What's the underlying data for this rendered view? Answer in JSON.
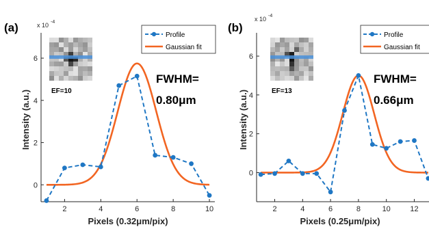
{
  "colors": {
    "profile": "#1f77c4",
    "fit": "#f26522",
    "inset_line": "#4a90d9",
    "axis": "#262626"
  },
  "chart_data": [
    {
      "type": "line",
      "panel_label": "(a)",
      "exponent_label": "x 10",
      "exponent_power": "-4",
      "xlabel": "Pixels (0.32μm/pix)",
      "ylabel": "Intensity (a.u.)",
      "xlim": [
        0.7,
        10.3
      ],
      "ylim": [
        -0.8,
        7.2
      ],
      "xticks": [
        2,
        4,
        6,
        8,
        10
      ],
      "yticks": [
        0,
        2,
        4,
        6
      ],
      "annotation_line1": "FWHM=",
      "annotation_line2": "0.80μm",
      "inset_label": "EF=10",
      "legend_position": "top-right",
      "series": [
        {
          "name": "Profile",
          "style": "dashed-markers",
          "x": [
            1,
            2,
            3,
            4,
            5,
            6,
            7,
            8,
            9,
            10
          ],
          "y": [
            -0.75,
            0.8,
            0.95,
            0.85,
            4.7,
            5.15,
            1.4,
            1.3,
            1.0,
            -0.5
          ]
        },
        {
          "name": "Gaussian fit",
          "style": "solid",
          "gaussian": {
            "amplitude": 5.75,
            "center": 6.0,
            "fwhm": 2.5,
            "offset": 0.0,
            "xrange": [
              1,
              10
            ]
          }
        }
      ]
    },
    {
      "type": "line",
      "panel_label": "(b)",
      "exponent_label": "x 10",
      "exponent_power": "-4",
      "xlabel": "Pixels (0.25μm/pix)",
      "ylabel": "Intensity (a.u.)",
      "xlim": [
        0.7,
        13.3
      ],
      "ylim": [
        -1.5,
        7.2
      ],
      "xticks": [
        2,
        4,
        6,
        8,
        10,
        12
      ],
      "yticks": [
        0,
        2,
        4,
        6
      ],
      "annotation_line1": "FWHM=",
      "annotation_line2": "0.66μm",
      "inset_label": "EF=13",
      "legend_position": "top-right",
      "series": [
        {
          "name": "Profile",
          "style": "dashed-markers",
          "x": [
            1,
            2,
            3,
            4,
            5,
            6,
            7,
            8,
            9,
            10,
            11,
            12,
            13
          ],
          "y": [
            -0.1,
            -0.05,
            0.6,
            -0.05,
            -0.05,
            -1.0,
            3.2,
            5.0,
            1.45,
            1.25,
            1.6,
            1.65,
            -0.3
          ]
        },
        {
          "name": "Gaussian fit",
          "style": "solid",
          "gaussian": {
            "amplitude": 5.0,
            "center": 8.0,
            "fwhm": 2.65,
            "offset": 0.0,
            "xrange": [
              1,
              13
            ]
          }
        }
      ]
    }
  ]
}
